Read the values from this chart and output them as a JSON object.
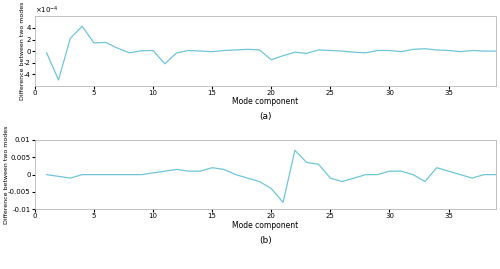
{
  "title_a": "(a)",
  "title_b": "(b)",
  "xlabel": "Mode component",
  "ylabel": "Difference between two modes",
  "xlim": [
    0,
    39
  ],
  "ylim_a": [
    -0.0006,
    0.0006
  ],
  "ylim_b": [
    -0.01,
    0.01
  ],
  "xticks": [
    0,
    5,
    10,
    15,
    20,
    25,
    30,
    35
  ],
  "yticks_a": [
    -0.0004,
    -0.0002,
    0,
    0.0002,
    0.0004
  ],
  "yticks_b": [
    -0.01,
    -0.005,
    0,
    0.005,
    0.01
  ],
  "line_color": "#6ec6d8",
  "background_color": "#ffffff",
  "data_a": [
    -3e-05,
    -0.0005,
    0.00022,
    0.00043,
    0.00014,
    0.00015,
    5e-05,
    -3e-05,
    5e-06,
    1e-05,
    -0.00022,
    -3e-05,
    1e-05,
    0.0,
    -1e-05,
    1e-05,
    2e-05,
    3e-05,
    2e-05,
    -0.00015,
    -8e-05,
    -2e-05,
    -4e-05,
    2e-05,
    1e-05,
    0.0,
    -2e-05,
    -3e-05,
    1e-05,
    1e-05,
    -1e-05,
    3e-05,
    4e-05,
    2e-05,
    1e-05,
    -1e-05,
    1e-05,
    0.0,
    0.0
  ],
  "data_b": [
    0.0,
    -0.0005,
    -0.001,
    0.0,
    0.0,
    0.0,
    0.0,
    0.0,
    0.0,
    0.0005,
    0.001,
    0.0015,
    0.001,
    0.001,
    0.002,
    0.0015,
    0.0,
    -0.001,
    -0.002,
    -0.004,
    -0.008,
    0.007,
    0.0035,
    0.003,
    -0.001,
    -0.002,
    -0.001,
    0.0,
    0.0,
    0.001,
    0.001,
    0.0,
    -0.002,
    0.002,
    0.001,
    0.0,
    -0.001,
    0.0,
    0.0
  ]
}
